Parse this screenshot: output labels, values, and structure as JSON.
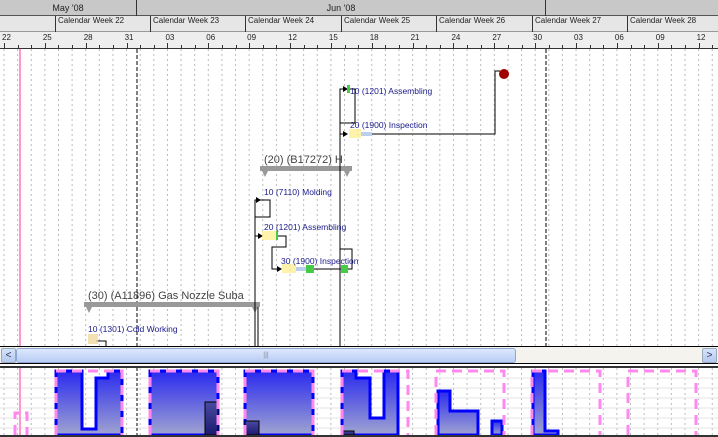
{
  "timeline": {
    "months": [
      "May '08",
      "Jun '08",
      ""
    ],
    "weeks": [
      "Calendar Week 22",
      "Calendar Week 23",
      "Calendar Week 24",
      "Calendar Week 25",
      "Calendar Week 26",
      "Calendar Week 27",
      "Calendar Week 28"
    ],
    "days": [
      "22",
      "25",
      "28",
      "31",
      "03",
      "06",
      "09",
      "12",
      "15",
      "18",
      "21",
      "24",
      "27",
      "30",
      "03",
      "06",
      "09",
      "12"
    ]
  },
  "tasks": {
    "summary_b17272": "(20) (B17272) H",
    "summary_a11896": "(30) (A11896) Gas Nozzle Suba",
    "op_assembling_top": "10 (1201) Assembling",
    "op_inspection_top": "20 (1900) Inspection",
    "op_molding": "10 (7110) Molding",
    "op_assembling": "20 (1201) Assembling",
    "op_inspection": "30 (1900) Inspection",
    "op_cold_working": "10 (1301) Cold Working"
  },
  "scrollbar": {
    "left": "<",
    "right": ">",
    "grip": "|||"
  },
  "colors": {
    "label": "#1a1a8a",
    "milestone": "#a00000",
    "summary_bar": "#999999",
    "histogram_fill": "#2a2af0",
    "capacity": "#ff88ee",
    "today_line": "#ff99cc"
  }
}
